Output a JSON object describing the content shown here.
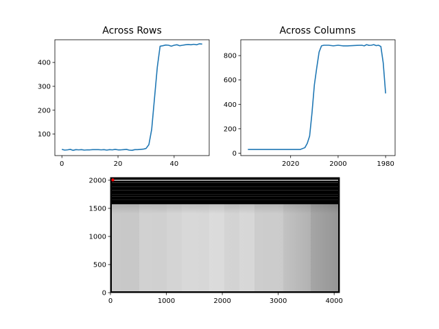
{
  "chart_data": [
    {
      "type": "line",
      "title": "Across Rows",
      "xlabel": "",
      "ylabel": "",
      "xlim": [
        -2.5,
        52.5
      ],
      "ylim": [
        10,
        495
      ],
      "xticks": [
        0,
        20,
        40
      ],
      "yticks": [
        100,
        200,
        300,
        400
      ],
      "series": [
        {
          "color": "#1f77b4",
          "x": [
            0,
            1,
            2,
            3,
            4,
            5,
            6,
            7,
            8,
            9,
            10,
            11,
            12,
            13,
            14,
            15,
            16,
            17,
            18,
            19,
            20,
            21,
            22,
            23,
            24,
            25,
            26,
            27,
            28,
            29,
            30,
            31,
            32,
            33,
            34,
            35,
            36,
            37,
            38,
            39,
            40,
            41,
            42,
            43,
            44,
            45,
            46,
            47,
            48,
            49,
            50
          ],
          "y": [
            36,
            33,
            34,
            36,
            32,
            35,
            34,
            35,
            33,
            34,
            34,
            35,
            35,
            35,
            34,
            35,
            33,
            35,
            34,
            36,
            34,
            34,
            35,
            36,
            33,
            32,
            35,
            35,
            36,
            37,
            40,
            56,
            120,
            250,
            380,
            468,
            470,
            473,
            472,
            468,
            472,
            474,
            470,
            472,
            474,
            475,
            474,
            476,
            474,
            478,
            477
          ]
        }
      ]
    },
    {
      "type": "line",
      "title": "Across Columns",
      "xlabel": "",
      "ylabel": "",
      "x_inverted": true,
      "xlim": [
        2041,
        1976
      ],
      "ylim": [
        -20,
        930
      ],
      "xticks": [
        2020,
        2000,
        1980
      ],
      "yticks": [
        0,
        200,
        400,
        600,
        800
      ],
      "series": [
        {
          "color": "#1f77b4",
          "x": [
            2038,
            2036,
            2034,
            2032,
            2030,
            2028,
            2026,
            2024,
            2022,
            2020,
            2018,
            2016,
            2014,
            2013,
            2012,
            2011,
            2010,
            2009,
            2008,
            2007,
            2006,
            2004,
            2002,
            2000,
            1998,
            1996,
            1994,
            1992,
            1990,
            1989,
            1988,
            1987,
            1986,
            1985,
            1984,
            1983,
            1982,
            1981,
            1980
          ],
          "y": [
            30,
            30,
            30,
            30,
            30,
            30,
            30,
            30,
            30,
            30,
            30,
            30,
            45,
            80,
            140,
            330,
            560,
            700,
            830,
            880,
            885,
            885,
            880,
            885,
            880,
            880,
            882,
            884,
            885,
            880,
            890,
            884,
            885,
            890,
            882,
            885,
            875,
            740,
            490
          ]
        }
      ]
    },
    {
      "type": "heatmap",
      "xlabel": "",
      "ylabel": "",
      "xlim": [
        0,
        4096
      ],
      "ylim": [
        0,
        2048
      ],
      "xticks": [
        0,
        1000,
        2000,
        3000,
        4000
      ],
      "yticks": [
        0,
        500,
        1000,
        1500,
        2000
      ],
      "colormap": "gray",
      "marker": {
        "x": 40,
        "y": 2020,
        "color": "#ff0000"
      }
    }
  ]
}
